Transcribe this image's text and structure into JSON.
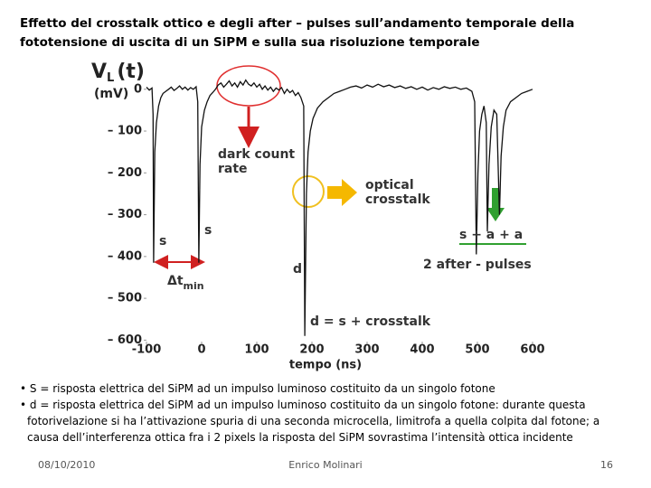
{
  "chart_data": {
    "type": "line",
    "title": "Effetto del crosstalk ottico e degli after – pulses sull’andamento temporale della fototensione di uscita di un SiPM e sulla sua risoluzione temporale",
    "xlabel": "tempo (ns)",
    "ylabel": {
      "main": "V",
      "sub": "L",
      "rest": "(t)",
      "unit": "(mV)"
    },
    "xlim": [
      -100,
      600
    ],
    "ylim": [
      -610,
      60
    ],
    "xticks": [
      -100,
      0,
      100,
      200,
      300,
      400,
      500,
      600
    ],
    "yticks": [
      0,
      {
        "value": -100,
        "label": "– 100"
      },
      {
        "value": -200,
        "label": "– 200"
      },
      {
        "value": -300,
        "label": "– 300"
      },
      {
        "value": -400,
        "label": "– 400"
      },
      {
        "value": -500,
        "label": "– 500"
      },
      {
        "value": -600,
        "label": "– 600"
      }
    ],
    "color": "#111111",
    "x": [
      -100,
      -95,
      -90,
      -88,
      -87,
      -85,
      -82,
      -78,
      -74,
      -70,
      -65,
      -60,
      -55,
      -50,
      -45,
      -40,
      -35,
      -30,
      -25,
      -20,
      -15,
      -10,
      -7,
      -5,
      -3,
      0,
      5,
      10,
      15,
      20,
      25,
      30,
      35,
      40,
      45,
      50,
      55,
      60,
      65,
      70,
      75,
      80,
      85,
      90,
      95,
      100,
      105,
      110,
      115,
      120,
      125,
      130,
      135,
      140,
      145,
      150,
      155,
      160,
      165,
      170,
      175,
      180,
      185,
      187,
      190,
      193,
      197,
      202,
      210,
      220,
      230,
      240,
      250,
      260,
      270,
      280,
      290,
      300,
      310,
      320,
      330,
      340,
      350,
      360,
      370,
      380,
      390,
      400,
      410,
      420,
      430,
      440,
      450,
      460,
      470,
      480,
      490,
      495,
      498,
      501,
      504,
      508,
      512,
      516,
      518,
      521,
      525,
      530,
      535,
      540,
      543,
      547,
      552,
      560,
      570,
      580,
      590,
      600
    ],
    "values": [
      5,
      -2,
      3,
      -60,
      -415,
      -150,
      -80,
      -40,
      -20,
      -10,
      -5,
      0,
      5,
      -3,
      2,
      8,
      0,
      5,
      -2,
      4,
      0,
      6,
      -30,
      -415,
      -180,
      -90,
      -50,
      -30,
      -15,
      -8,
      0,
      10,
      15,
      5,
      12,
      20,
      8,
      15,
      5,
      18,
      10,
      22,
      12,
      8,
      15,
      5,
      12,
      0,
      8,
      -2,
      5,
      -5,
      3,
      -2,
      4,
      -10,
      0,
      -8,
      -3,
      -15,
      -8,
      -20,
      -40,
      -590,
      -250,
      -150,
      -100,
      -70,
      -45,
      -30,
      -20,
      -10,
      -5,
      0,
      5,
      8,
      3,
      10,
      5,
      12,
      6,
      10,
      4,
      8,
      2,
      6,
      0,
      5,
      -2,
      4,
      0,
      6,
      2,
      5,
      0,
      3,
      -5,
      -30,
      -395,
      -200,
      -100,
      -60,
      -40,
      -80,
      -340,
      -180,
      -90,
      -50,
      -60,
      -300,
      -160,
      -90,
      -50,
      -30,
      -20,
      -10,
      -5,
      0
    ],
    "annotations": [
      {
        "text": "dark count rate"
      },
      {
        "text": "optical crosstalk"
      },
      {
        "text": "s"
      },
      {
        "text": "s"
      },
      {
        "text": "d"
      },
      {
        "text": "d = s + crosstalk"
      },
      {
        "text": "s + a + a"
      },
      {
        "text": "2 after - pulses"
      },
      {
        "text": "Δt",
        "sub": "min"
      }
    ]
  },
  "slide": {
    "bullets": [
      "• S = risposta elettrica del SiPM ad un impulso luminoso costituito da un singolo fotone",
      "• d = risposta elettrica del SiPM ad un impulso luminoso costituito da un singolo fotone: durante questa fotorivelazione si ha l’attivazione spuria di una seconda microcella, limitrofa a quella colpita dal fotone; a causa dell’interferenza ottica fra i 2 pixels la risposta del SiPM sovrastima l’intensità ottica incidente"
    ],
    "footer": {
      "date": "08/10/2010",
      "author": "Enrico Molinari",
      "page": "16"
    }
  }
}
